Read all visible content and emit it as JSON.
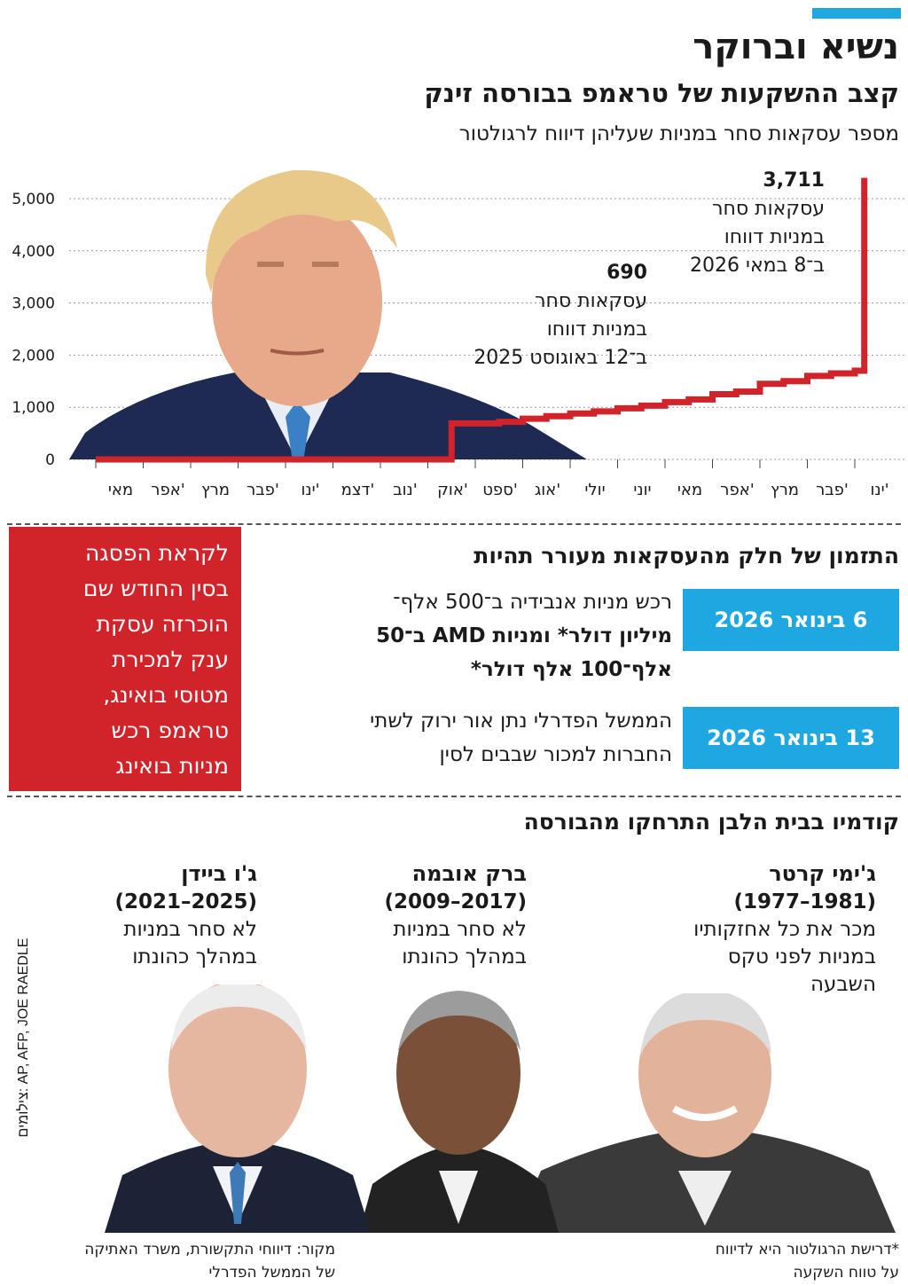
{
  "header": {
    "headline": "נשיא וברוקר",
    "subtitle": "קצב ההשקעות של טראמפ בבורסה זינק",
    "description": "מספר עסקאות סחר במניות שעליהן דיווח לרגולטור"
  },
  "colors": {
    "accent": "#1ea7e1",
    "line": "#d0232a",
    "red_box": "#d0232a"
  },
  "chart_data": {
    "type": "line",
    "step": true,
    "title": "קצב ההשקעות של טראמפ בבורסה זינק",
    "subtitle": "מספר עסקאות סחר במניות שעליהן דיווח לרגולטור",
    "yticks": [
      "0",
      "1,000",
      "2,000",
      "3,000",
      "4,000",
      "5,000"
    ],
    "ylim": [
      0,
      5000
    ],
    "x_tick_labels": [
      "ינו'",
      "פבר'",
      "מרץ",
      "אפר'",
      "מאי",
      "יוני",
      "יולי",
      "אוג'",
      "ספט'",
      "אוק'",
      "נוב'",
      "דצמ'",
      "ינו'",
      "פבר'",
      "מרץ",
      "אפר'",
      "מאי"
    ],
    "x": [
      0,
      0.5,
      1,
      2,
      3,
      4,
      5,
      6,
      7,
      7.4,
      7.5,
      8,
      8.5,
      9,
      9.5,
      10,
      10.5,
      11,
      11.5,
      12,
      12.5,
      13,
      13.5,
      14,
      14.5,
      15,
      15.5,
      16,
      16.2
    ],
    "values": [
      0,
      0,
      0,
      0,
      0,
      0,
      0,
      0,
      0,
      0,
      690,
      690,
      720,
      780,
      830,
      880,
      920,
      980,
      1030,
      1100,
      1150,
      1250,
      1300,
      1450,
      1500,
      1600,
      1650,
      1700,
      5400
    ],
    "grid": true,
    "annotations": [
      {
        "value": "690",
        "text": [
          "עסקאות סחר",
          "במניות דווחו",
          "ב־12 באוגוסט 2025"
        ]
      },
      {
        "value": "3,711",
        "text": [
          "עסקאות סחר",
          "במניות דווחו",
          "ב־8 במאי 2026"
        ]
      }
    ]
  },
  "timing": {
    "title": "התזמון של חלק מהעסקאות מעורר תהיות",
    "red_box": [
      "לקראת הפסגה",
      "בסין החודש שם",
      "הוכרזה עסקת",
      "ענק למכירת",
      "מטוסי בואינג,",
      "טראמפ רכש",
      "מניות בואינג"
    ],
    "events": [
      {
        "date": "6 בינואר 2026",
        "lines": [
          "רכש מניות אנבידיה ב־500 אלף־",
          "מיליון דולר* ומניות AMD ב־50",
          "אלף־100 אלף דולר*"
        ]
      },
      {
        "date": "13 בינואר 2026",
        "lines": [
          "הממשל הפדרלי נתן אור ירוק לשתי",
          "החברות למכור שבבים לסין"
        ]
      }
    ]
  },
  "predecessors": {
    "title": "קודמיו בבית הלבן התרחקו מהבורסה",
    "people": [
      {
        "name": "ג'ימי קרטר",
        "years": "(1981–1977)",
        "text": [
          "מכר את כל אחזקותיו",
          "במניות לפני טקס",
          "השבעה"
        ],
        "photo": "carter-photo"
      },
      {
        "name": "ברק אובמה",
        "years": "(2017–2009)",
        "text": [
          "לא סחר במניות",
          "במהלך כהונתו"
        ],
        "photo": "obama-photo"
      },
      {
        "name": "ג'ו ביידן",
        "years": "(2025–2021)",
        "text": [
          "לא סחר במניות",
          "במהלך כהונתו"
        ],
        "photo": "biden-photo"
      }
    ]
  },
  "credits": "צילומים: AP, AFP, JOE RAEDLE",
  "footer": {
    "note": [
      "*דרישת הרגולטור היא לדיווח",
      "על טווח השקעה"
    ],
    "source": [
      "מקור: דיווחי התקשורת, משרד האתיקה",
      "של הממשל הפדרלי"
    ]
  }
}
